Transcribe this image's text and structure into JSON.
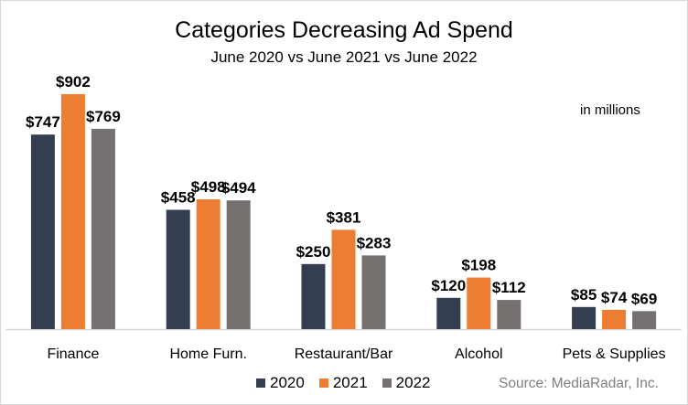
{
  "chart_data": {
    "type": "bar",
    "title": "Categories Decreasing Ad Spend",
    "subtitle": "June 2020 vs June 2021 vs June 2022",
    "annotation": "in millions",
    "source": "Source: MediaRadar, Inc.",
    "categories": [
      "Finance",
      "Home Furn.",
      "Restaurant/Bar",
      "Alcohol",
      "Pets & Supplies"
    ],
    "series": [
      {
        "name": "2020",
        "color": "#333f50",
        "values": [
          747,
          458,
          250,
          120,
          85
        ],
        "labels": [
          "$747",
          "$458",
          "$250",
          "$120",
          "$85"
        ]
      },
      {
        "name": "2021",
        "color": "#ed7d31",
        "values": [
          902,
          498,
          381,
          198,
          74
        ],
        "labels": [
          "$902",
          "$498",
          "$381",
          "$198",
          "$74"
        ]
      },
      {
        "name": "2022",
        "color": "#767171",
        "values": [
          769,
          494,
          283,
          112,
          69
        ],
        "labels": [
          "$769",
          "$494",
          "$283",
          "$112",
          "$69"
        ]
      }
    ],
    "xlabel": "",
    "ylabel": "",
    "ylim": [
      0,
      902
    ],
    "grid": false,
    "legend": "bottom"
  }
}
